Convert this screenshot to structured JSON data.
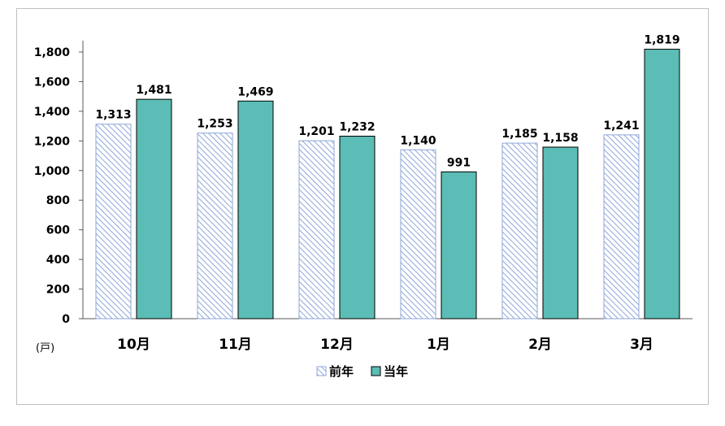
{
  "chart_data": {
    "type": "bar",
    "categories": [
      "10月",
      "11月",
      "12月",
      "1月",
      "2月",
      "3月"
    ],
    "series": [
      {
        "name": "前年",
        "values": [
          1313,
          1253,
          1201,
          1140,
          1185,
          1241
        ],
        "value_labels": [
          "1,313",
          "1,253",
          "1,201",
          "1,140",
          "1,185",
          "1,241"
        ],
        "pattern": "diagonal-hatch",
        "color": "#8ea6d8"
      },
      {
        "name": "当年",
        "values": [
          1481,
          1469,
          1232,
          991,
          1158,
          1819
        ],
        "value_labels": [
          "1,481",
          "1,469",
          "1,232",
          "991",
          "1,158",
          "1,819"
        ],
        "color": "#5bbdb5"
      }
    ],
    "y_unit": "(戸)",
    "ylim": [
      0,
      1800
    ],
    "yticks": [
      0,
      200,
      400,
      600,
      800,
      1000,
      1200,
      1400,
      1600,
      1800
    ],
    "ytick_labels": [
      "0",
      "200",
      "400",
      "600",
      "800",
      "1,000",
      "1,200",
      "1,400",
      "1,600",
      "1,800"
    ],
    "grid": false,
    "legend_position": "bottom"
  }
}
